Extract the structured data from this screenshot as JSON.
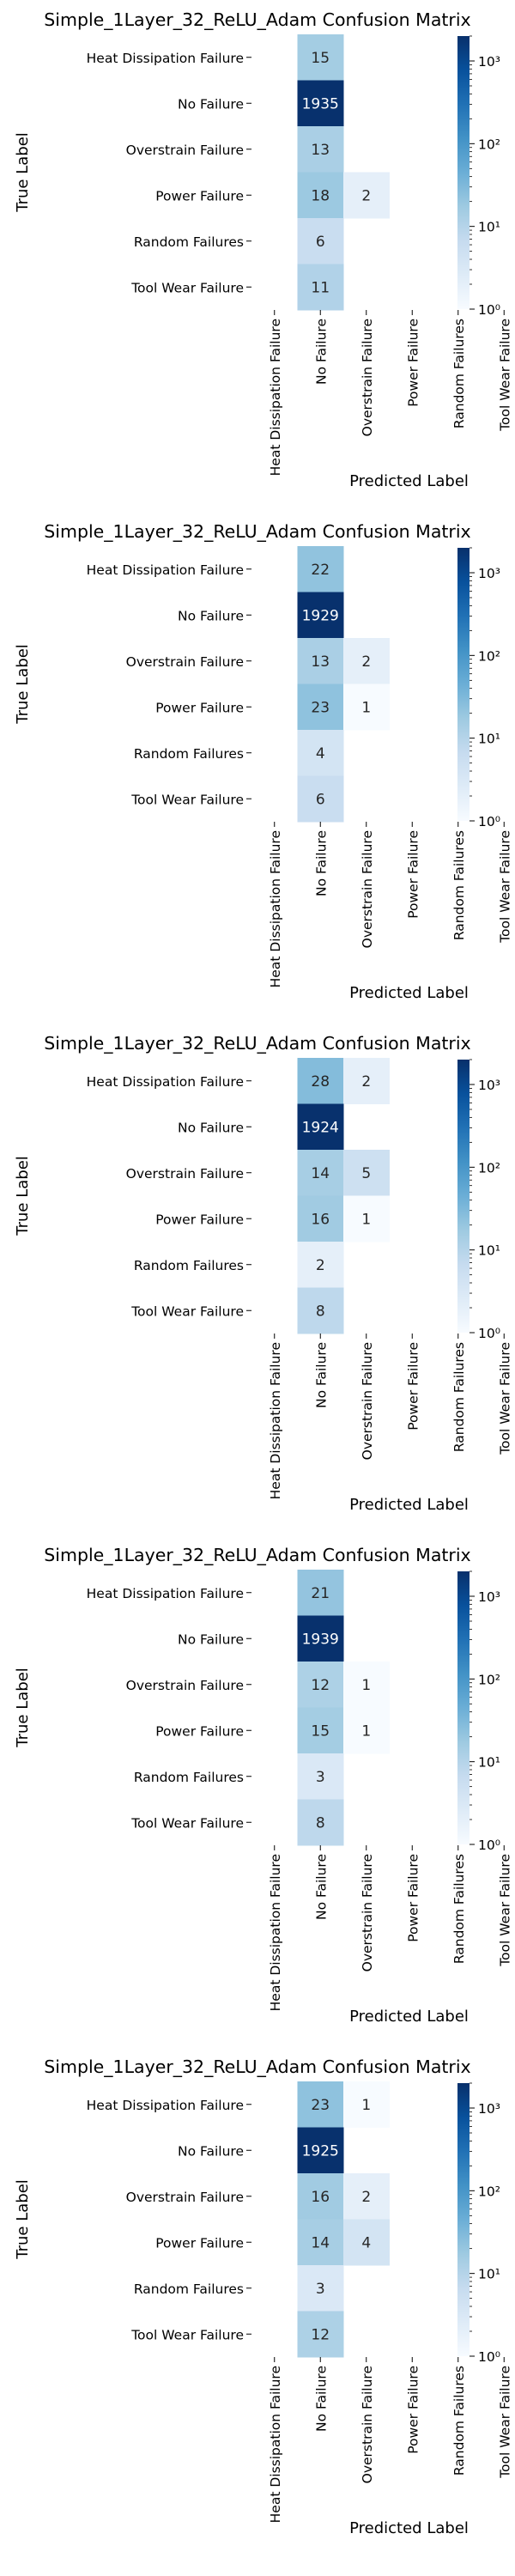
{
  "chart_data": [
    {
      "type": "heatmap",
      "title": "Simple_1Layer_32_ReLU_Adam Confusion Matrix",
      "xlabel": "Predicted Label",
      "ylabel": "True Label",
      "row_labels": [
        "Heat Dissipation Failure",
        "No Failure",
        "Overstrain Failure",
        "Power Failure",
        "Random Failures",
        "Tool Wear Failure"
      ],
      "col_labels": [
        "Heat Dissipation Failure",
        "No Failure",
        "Overstrain Failure",
        "Power Failure",
        "Random Failures",
        "Tool Wear Failure"
      ],
      "values": [
        [
          0,
          15,
          0,
          0,
          0,
          0
        ],
        [
          0,
          1935,
          0,
          0,
          0,
          0
        ],
        [
          0,
          13,
          0,
          0,
          0,
          0
        ],
        [
          0,
          18,
          2,
          0,
          0,
          0
        ],
        [
          0,
          6,
          0,
          0,
          0,
          0
        ],
        [
          0,
          11,
          0,
          0,
          0,
          0
        ]
      ],
      "colorbar": {
        "scale": "log",
        "range": [
          1,
          2000
        ],
        "major_ticks": [
          1,
          10,
          100,
          1000
        ],
        "tick_labels": [
          "10⁰",
          "10¹",
          "10²",
          "10³"
        ]
      },
      "colormap": [
        "#f7fbff",
        "#deebf7",
        "#c6dbef",
        "#9ecae1",
        "#6baed6",
        "#4292c6",
        "#2171b5",
        "#08519c",
        "#08306b"
      ]
    },
    {
      "type": "heatmap",
      "title": "Simple_1Layer_32_ReLU_Adam Confusion Matrix",
      "xlabel": "Predicted Label",
      "ylabel": "True Label",
      "row_labels": [
        "Heat Dissipation Failure",
        "No Failure",
        "Overstrain Failure",
        "Power Failure",
        "Random Failures",
        "Tool Wear Failure"
      ],
      "col_labels": [
        "Heat Dissipation Failure",
        "No Failure",
        "Overstrain Failure",
        "Power Failure",
        "Random Failures",
        "Tool Wear Failure"
      ],
      "values": [
        [
          0,
          22,
          0,
          0,
          0,
          0
        ],
        [
          0,
          1929,
          0,
          0,
          0,
          0
        ],
        [
          0,
          13,
          2,
          0,
          0,
          0
        ],
        [
          0,
          23,
          1,
          0,
          0,
          0
        ],
        [
          0,
          4,
          0,
          0,
          0,
          0
        ],
        [
          0,
          6,
          0,
          0,
          0,
          0
        ]
      ],
      "colorbar": {
        "scale": "log",
        "range": [
          1,
          2000
        ],
        "major_ticks": [
          1,
          10,
          100,
          1000
        ],
        "tick_labels": [
          "10⁰",
          "10¹",
          "10²",
          "10³"
        ]
      },
      "colormap": [
        "#f7fbff",
        "#deebf7",
        "#c6dbef",
        "#9ecae1",
        "#6baed6",
        "#4292c6",
        "#2171b5",
        "#08519c",
        "#08306b"
      ]
    },
    {
      "type": "heatmap",
      "title": "Simple_1Layer_32_ReLU_Adam Confusion Matrix",
      "xlabel": "Predicted Label",
      "ylabel": "True Label",
      "row_labels": [
        "Heat Dissipation Failure",
        "No Failure",
        "Overstrain Failure",
        "Power Failure",
        "Random Failures",
        "Tool Wear Failure"
      ],
      "col_labels": [
        "Heat Dissipation Failure",
        "No Failure",
        "Overstrain Failure",
        "Power Failure",
        "Random Failures",
        "Tool Wear Failure"
      ],
      "values": [
        [
          0,
          28,
          2,
          0,
          0,
          0
        ],
        [
          0,
          1924,
          0,
          0,
          0,
          0
        ],
        [
          0,
          14,
          5,
          0,
          0,
          0
        ],
        [
          0,
          16,
          1,
          0,
          0,
          0
        ],
        [
          0,
          2,
          0,
          0,
          0,
          0
        ],
        [
          0,
          8,
          0,
          0,
          0,
          0
        ]
      ],
      "colorbar": {
        "scale": "log",
        "range": [
          1,
          2000
        ],
        "major_ticks": [
          1,
          10,
          100,
          1000
        ],
        "tick_labels": [
          "10⁰",
          "10¹",
          "10²",
          "10³"
        ]
      },
      "colormap": [
        "#f7fbff",
        "#deebf7",
        "#c6dbef",
        "#9ecae1",
        "#6baed6",
        "#4292c6",
        "#2171b5",
        "#08519c",
        "#08306b"
      ]
    },
    {
      "type": "heatmap",
      "title": "Simple_1Layer_32_ReLU_Adam Confusion Matrix",
      "xlabel": "Predicted Label",
      "ylabel": "True Label",
      "row_labels": [
        "Heat Dissipation Failure",
        "No Failure",
        "Overstrain Failure",
        "Power Failure",
        "Random Failures",
        "Tool Wear Failure"
      ],
      "col_labels": [
        "Heat Dissipation Failure",
        "No Failure",
        "Overstrain Failure",
        "Power Failure",
        "Random Failures",
        "Tool Wear Failure"
      ],
      "values": [
        [
          0,
          21,
          0,
          0,
          0,
          0
        ],
        [
          0,
          1939,
          0,
          0,
          0,
          0
        ],
        [
          0,
          12,
          1,
          0,
          0,
          0
        ],
        [
          0,
          15,
          1,
          0,
          0,
          0
        ],
        [
          0,
          3,
          0,
          0,
          0,
          0
        ],
        [
          0,
          8,
          0,
          0,
          0,
          0
        ]
      ],
      "colorbar": {
        "scale": "log",
        "range": [
          1,
          2000
        ],
        "major_ticks": [
          1,
          10,
          100,
          1000
        ],
        "tick_labels": [
          "10⁰",
          "10¹",
          "10²",
          "10³"
        ]
      },
      "colormap": [
        "#f7fbff",
        "#deebf7",
        "#c6dbef",
        "#9ecae1",
        "#6baed6",
        "#4292c6",
        "#2171b5",
        "#08519c",
        "#08306b"
      ]
    },
    {
      "type": "heatmap",
      "title": "Simple_1Layer_32_ReLU_Adam Confusion Matrix",
      "xlabel": "Predicted Label",
      "ylabel": "True Label",
      "row_labels": [
        "Heat Dissipation Failure",
        "No Failure",
        "Overstrain Failure",
        "Power Failure",
        "Random Failures",
        "Tool Wear Failure"
      ],
      "col_labels": [
        "Heat Dissipation Failure",
        "No Failure",
        "Overstrain Failure",
        "Power Failure",
        "Random Failures",
        "Tool Wear Failure"
      ],
      "values": [
        [
          0,
          23,
          1,
          0,
          0,
          0
        ],
        [
          0,
          1925,
          0,
          0,
          0,
          0
        ],
        [
          0,
          16,
          2,
          0,
          0,
          0
        ],
        [
          0,
          14,
          4,
          0,
          0,
          0
        ],
        [
          0,
          3,
          0,
          0,
          0,
          0
        ],
        [
          0,
          12,
          0,
          0,
          0,
          0
        ]
      ],
      "colorbar": {
        "scale": "log",
        "range": [
          1,
          2000
        ],
        "major_ticks": [
          1,
          10,
          100,
          1000
        ],
        "tick_labels": [
          "10⁰",
          "10¹",
          "10²",
          "10³"
        ]
      },
      "colormap": [
        "#f7fbff",
        "#deebf7",
        "#c6dbef",
        "#9ecae1",
        "#6baed6",
        "#4292c6",
        "#2171b5",
        "#08519c",
        "#08306b"
      ]
    }
  ]
}
